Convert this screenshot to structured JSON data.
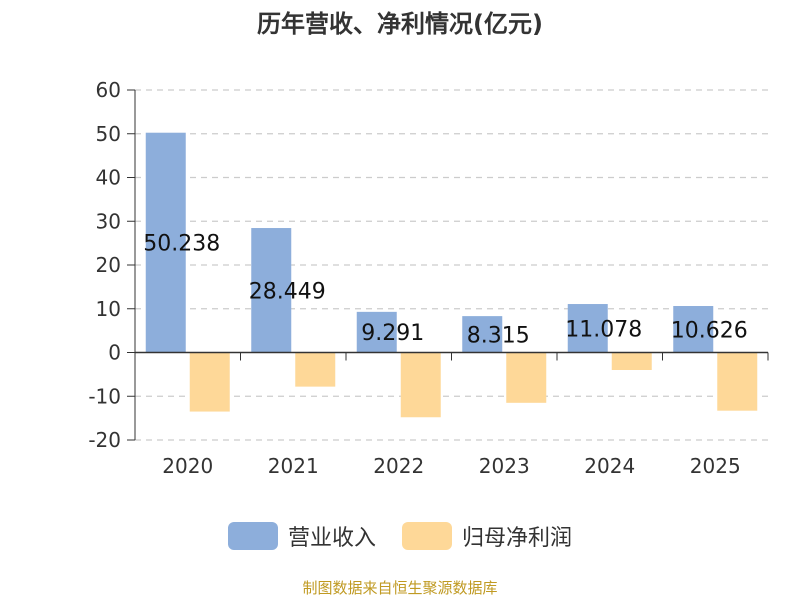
{
  "title": "历年营收、净利情况(亿元)",
  "source": "制图数据来自恒生聚源数据库",
  "colors": {
    "revenue": "#8daedb",
    "profit": "#fed898",
    "axis": "#333333",
    "grid": "#cccccc",
    "source": "#c09a22"
  },
  "chart_data": {
    "type": "bar",
    "title": "历年营收、净利情况(亿元)",
    "categories": [
      "2020",
      "2021",
      "2022",
      "2023",
      "2024",
      "2025"
    ],
    "series": [
      {
        "name": "营业收入",
        "values": [
          50.238,
          28.449,
          9.291,
          8.315,
          11.078,
          10.626
        ],
        "labels": [
          "50.238",
          "28.449",
          "9.291",
          "8.315",
          "11.078",
          "10.626"
        ]
      },
      {
        "name": "归母净利润",
        "values": [
          -13.5,
          -7.8,
          -14.8,
          -11.5,
          -4.0,
          -13.3
        ]
      }
    ],
    "yticks": [
      60,
      50,
      40,
      30,
      20,
      10,
      0,
      -10,
      -20
    ],
    "ylim": [
      -20,
      60
    ],
    "grid": true,
    "legend_position": "bottom"
  }
}
